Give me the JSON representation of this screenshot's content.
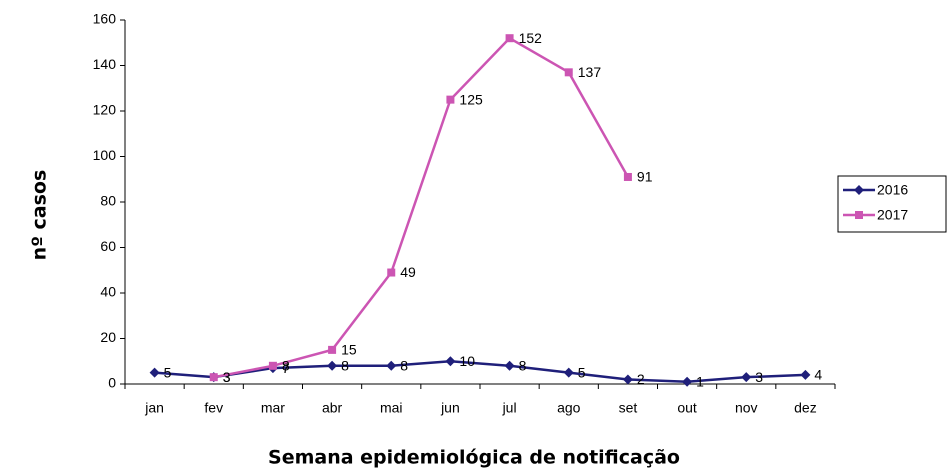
{
  "chart_data": {
    "type": "line",
    "y_label": "nº casos",
    "x_label": "Semana epidemiológica de notificação",
    "categories": [
      "jan",
      "fev",
      "mar",
      "abr",
      "mai",
      "jun",
      "jul",
      "ago",
      "set",
      "out",
      "nov",
      "dez"
    ],
    "series": [
      {
        "name": "2016",
        "color": "#1f1f7a",
        "marker": "diamond",
        "values": [
          5,
          3,
          7,
          8,
          8,
          10,
          8,
          5,
          2,
          1,
          3,
          4
        ]
      },
      {
        "name": "2017",
        "color": "#cc55b3",
        "marker": "square",
        "values": [
          null,
          3,
          8,
          15,
          49,
          125,
          152,
          137,
          91,
          null,
          null,
          null
        ]
      }
    ],
    "ylim": [
      0,
      160
    ],
    "yticks": [
      0,
      20,
      40,
      60,
      80,
      100,
      120,
      140,
      160
    ],
    "grid": false,
    "legend": "right"
  }
}
